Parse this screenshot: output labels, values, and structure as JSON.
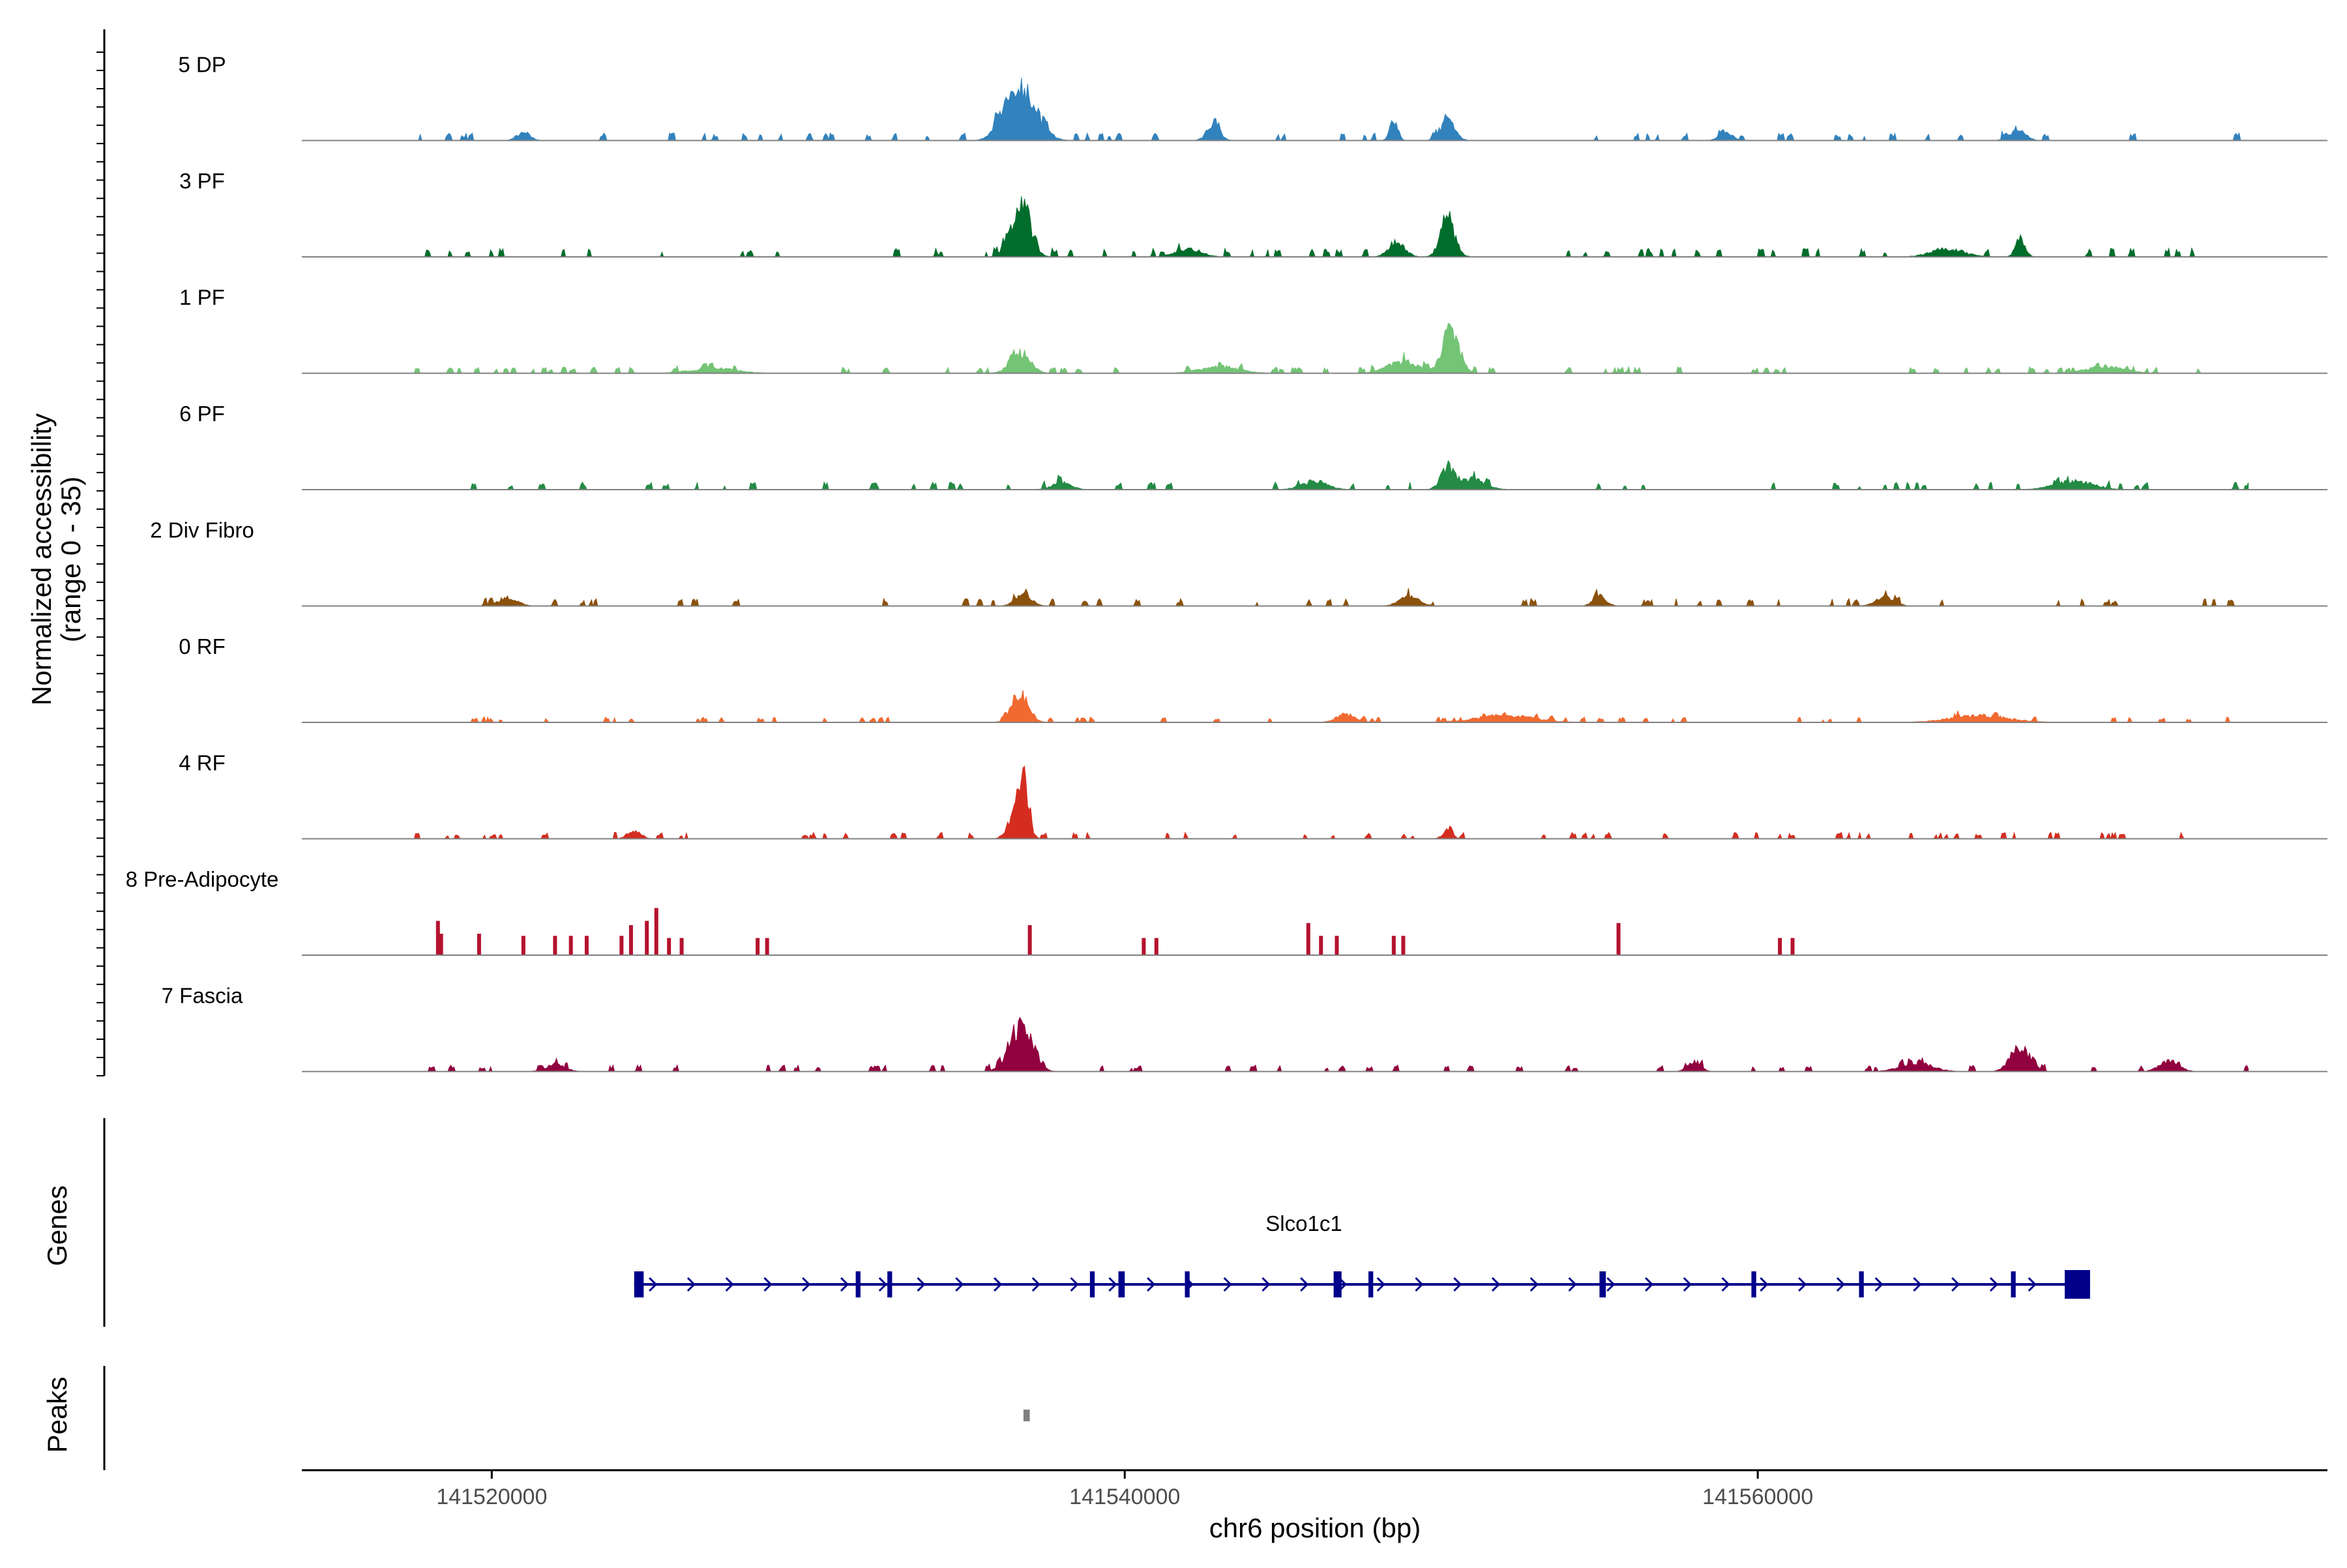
{
  "chart_data": {
    "type": "area",
    "title": "",
    "ylabel_line1": "Normalized accessibility",
    "ylabel_line2": "(range 0 - 35)",
    "xlabel": "chr6 position (bp)",
    "xlim": [
      141514000,
      141578000
    ],
    "ylim": [
      0,
      35
    ],
    "data_span": [
      141517500,
      141575500
    ],
    "x_ticks": [
      {
        "value": 141520000,
        "label": "141520000"
      },
      {
        "value": 141540000,
        "label": "141540000"
      },
      {
        "value": 141560000,
        "label": "141560000"
      }
    ],
    "tracks": [
      {
        "name": "5 DP",
        "color": "#3182BD",
        "noise": 3.5,
        "peaks": [
          [
            141536800,
            28,
            450
          ],
          [
            141536200,
            10,
            300
          ],
          [
            141542800,
            10,
            200
          ],
          [
            141548500,
            13,
            120
          ],
          [
            141550200,
            13,
            220
          ],
          [
            141521000,
            5,
            200
          ],
          [
            141559000,
            5,
            200
          ],
          [
            141568200,
            6,
            250
          ]
        ]
      },
      {
        "name": "3 PF",
        "color": "#006D2C",
        "noise": 4.0,
        "peaks": [
          [
            141536700,
            30,
            300
          ],
          [
            141550200,
            20,
            230
          ],
          [
            141548600,
            9,
            250
          ],
          [
            141568300,
            11,
            150
          ],
          [
            141542000,
            5,
            400
          ],
          [
            141566000,
            5,
            500
          ]
        ]
      },
      {
        "name": "1 PF",
        "color": "#74C476",
        "noise": 3.0,
        "peaks": [
          [
            141550300,
            28,
            250
          ],
          [
            141536700,
            13,
            300
          ],
          [
            141548800,
            7,
            500
          ],
          [
            141543000,
            4,
            600
          ],
          [
            141527000,
            3,
            700
          ],
          [
            141571000,
            4,
            600
          ]
        ]
      },
      {
        "name": "6 PF",
        "color": "#238B45",
        "noise": 3.5,
        "peaks": [
          [
            141550200,
            12,
            220
          ],
          [
            141551000,
            6,
            400
          ],
          [
            141546000,
            5,
            400
          ],
          [
            141538000,
            4,
            300
          ],
          [
            141570000,
            5,
            600
          ]
        ]
      },
      {
        "name": "2 Div Fibro",
        "color": "#8C510A",
        "noise": 3.5,
        "peaks": [
          [
            141536800,
            7,
            250
          ],
          [
            141549000,
            6,
            300
          ],
          [
            141555000,
            6,
            200
          ],
          [
            141564000,
            5,
            300
          ],
          [
            141520500,
            5,
            300
          ]
        ]
      },
      {
        "name": "0 RF",
        "color": "#F16A30",
        "noise": 2.5,
        "peaks": [
          [
            141536700,
            18,
            260
          ],
          [
            141547000,
            5,
            300
          ],
          [
            141552000,
            4,
            900
          ],
          [
            141567000,
            4,
            900
          ]
        ]
      },
      {
        "name": "4 RF",
        "color": "#D42D20",
        "noise": 3.0,
        "peaks": [
          [
            141536800,
            33,
            160
          ],
          [
            141536500,
            12,
            220
          ],
          [
            141524500,
            5,
            200
          ],
          [
            141550200,
            5,
            150
          ]
        ]
      },
      {
        "name": "8 Pre-Adipocyte",
        "color": "#B4122E",
        "noise": 0,
        "spikes": [
          [
            141518300,
            16
          ],
          [
            141518400,
            10
          ],
          [
            141519600,
            10
          ],
          [
            141521000,
            9
          ],
          [
            141522000,
            9
          ],
          [
            141522500,
            9
          ],
          [
            141523000,
            9
          ],
          [
            141524100,
            9
          ],
          [
            141524400,
            14
          ],
          [
            141524900,
            16
          ],
          [
            141525200,
            22
          ],
          [
            141525600,
            8
          ],
          [
            141526000,
            8
          ],
          [
            141528400,
            8
          ],
          [
            141528700,
            8
          ],
          [
            141537000,
            14
          ],
          [
            141540600,
            8
          ],
          [
            141541000,
            8
          ],
          [
            141545800,
            15
          ],
          [
            141546200,
            9
          ],
          [
            141546700,
            9
          ],
          [
            141548500,
            9
          ],
          [
            141548800,
            9
          ],
          [
            141555600,
            15
          ],
          [
            141560700,
            8
          ],
          [
            141561100,
            8
          ]
        ]
      },
      {
        "name": "7 Fascia",
        "color": "#91003F",
        "noise": 3.0,
        "peaks": [
          [
            141536700,
            28,
            350
          ],
          [
            141568300,
            15,
            300
          ],
          [
            141565000,
            5,
            500
          ],
          [
            141558000,
            6,
            200
          ],
          [
            141573000,
            6,
            300
          ],
          [
            141522000,
            4,
            300
          ]
        ]
      }
    ],
    "genes_label": "Genes",
    "peaks_label": "Peaks",
    "gene": {
      "name": "Slco1c1",
      "color": "#00008B",
      "start": 141524500,
      "end": 141570500,
      "exons": [
        [
          141524500,
          141524800
        ],
        [
          141531500,
          141531650
        ],
        [
          141532500,
          141532650
        ],
        [
          141538900,
          141539050
        ],
        [
          141539800,
          141540000
        ],
        [
          141541900,
          141542050
        ],
        [
          141546600,
          141546850
        ],
        [
          141547700,
          141547850
        ],
        [
          141555000,
          141555200
        ],
        [
          141559800,
          141559950
        ],
        [
          141563200,
          141563350
        ],
        [
          141568000,
          141568150
        ],
        [
          141569700,
          141570500
        ]
      ]
    },
    "peak_regions": [
      {
        "start": 141536800,
        "end": 141537000,
        "color": "#808080"
      }
    ]
  }
}
